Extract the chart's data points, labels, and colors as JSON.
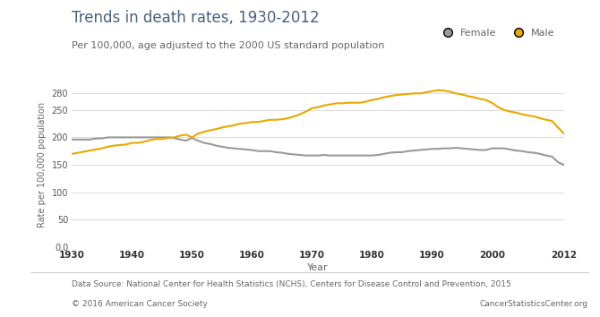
{
  "title": "Trends in death rates, 1930-2012",
  "subtitle": "Per 100,000, age adjusted to the 2000 US standard population",
  "xlabel": "Year",
  "ylabel": "Rate per 100,000 population",
  "footnote_left": "Data Source: National Center for Health Statistics (NCHS), Centers for Disease Control and Prevention, 2015",
  "copyright": "© 2016 American Cancer Society",
  "website": "CancerStatisticsCenter.org",
  "background_color": "#ffffff",
  "plot_bg_color": "#ffffff",
  "title_color": "#4a6080",
  "subtitle_color": "#666666",
  "footnote_color": "#666666",
  "female_color": "#999999",
  "male_color": "#e8a800",
  "grid_color": "#dddddd",
  "ylim": [
    0,
    300
  ],
  "yticks": [
    0,
    50,
    100,
    150,
    200,
    250,
    280
  ],
  "ytick_labels": [
    "0.0",
    "50",
    "100",
    "150",
    "200",
    "250",
    "280"
  ],
  "xticks": [
    1930,
    1940,
    1950,
    1960,
    1970,
    1980,
    1990,
    2000,
    2012
  ],
  "years_female": [
    1930,
    1931,
    1932,
    1933,
    1934,
    1935,
    1936,
    1937,
    1938,
    1939,
    1940,
    1941,
    1942,
    1943,
    1944,
    1945,
    1946,
    1947,
    1948,
    1949,
    1950,
    1951,
    1952,
    1953,
    1954,
    1955,
    1956,
    1957,
    1958,
    1959,
    1960,
    1961,
    1962,
    1963,
    1964,
    1965,
    1966,
    1967,
    1968,
    1969,
    1970,
    1971,
    1972,
    1973,
    1974,
    1975,
    1976,
    1977,
    1978,
    1979,
    1980,
    1981,
    1982,
    1983,
    1984,
    1985,
    1986,
    1987,
    1988,
    1989,
    1990,
    1991,
    1992,
    1993,
    1994,
    1995,
    1996,
    1997,
    1998,
    1999,
    2000,
    2001,
    2002,
    2003,
    2004,
    2005,
    2006,
    2007,
    2008,
    2009,
    2010,
    2011,
    2012
  ],
  "values_female": [
    196,
    196,
    196,
    196,
    198,
    198,
    200,
    200,
    200,
    200,
    200,
    200,
    200,
    200,
    200,
    200,
    200,
    199,
    196,
    194,
    199,
    194,
    190,
    188,
    185,
    183,
    181,
    180,
    179,
    178,
    177,
    175,
    175,
    175,
    173,
    172,
    170,
    169,
    168,
    167,
    167,
    167,
    168,
    167,
    167,
    167,
    167,
    167,
    167,
    167,
    167,
    168,
    170,
    172,
    173,
    173,
    175,
    176,
    177,
    178,
    179,
    179,
    180,
    180,
    181,
    180,
    179,
    178,
    177,
    177,
    180,
    180,
    180,
    178,
    176,
    175,
    173,
    172,
    170,
    167,
    165,
    155,
    150
  ],
  "years_male": [
    1930,
    1931,
    1932,
    1933,
    1934,
    1935,
    1936,
    1937,
    1938,
    1939,
    1940,
    1941,
    1942,
    1943,
    1944,
    1945,
    1946,
    1947,
    1948,
    1949,
    1950,
    1951,
    1952,
    1953,
    1954,
    1955,
    1956,
    1957,
    1958,
    1959,
    1960,
    1961,
    1962,
    1963,
    1964,
    1965,
    1966,
    1967,
    1968,
    1969,
    1970,
    1971,
    1972,
    1973,
    1974,
    1975,
    1976,
    1977,
    1978,
    1979,
    1980,
    1981,
    1982,
    1983,
    1984,
    1985,
    1986,
    1987,
    1988,
    1989,
    1990,
    1991,
    1992,
    1993,
    1994,
    1995,
    1996,
    1997,
    1998,
    1999,
    2000,
    2001,
    2002,
    2003,
    2004,
    2005,
    2006,
    2007,
    2008,
    2009,
    2010,
    2011,
    2012
  ],
  "values_male": [
    170,
    172,
    174,
    176,
    178,
    180,
    183,
    185,
    186,
    187,
    190,
    190,
    192,
    195,
    197,
    197,
    199,
    200,
    203,
    205,
    200,
    207,
    210,
    213,
    215,
    218,
    220,
    222,
    225,
    226,
    228,
    228,
    230,
    232,
    232,
    233,
    235,
    238,
    242,
    247,
    253,
    255,
    258,
    260,
    262,
    262,
    263,
    263,
    263,
    265,
    268,
    270,
    273,
    275,
    277,
    278,
    279,
    280,
    280,
    282,
    284,
    286,
    285,
    283,
    280,
    278,
    275,
    273,
    270,
    268,
    263,
    255,
    250,
    247,
    245,
    242,
    240,
    238,
    235,
    232,
    230,
    218,
    207
  ]
}
